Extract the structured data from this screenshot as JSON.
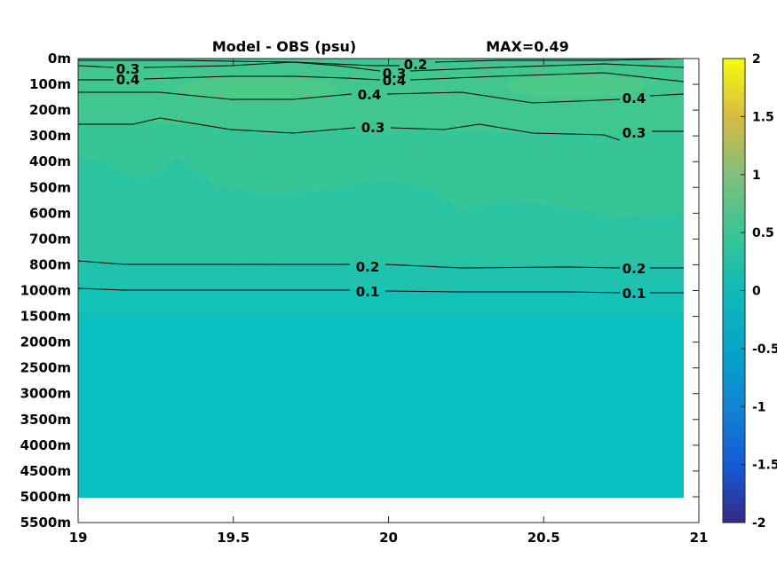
{
  "chart_data": {
    "type": "heatmap",
    "title": "Model - OBS (psu)",
    "max_label": "MAX=0.49",
    "xlabel": "",
    "ylabel": "",
    "x_ticks": [
      "19",
      "19.5",
      "20",
      "20.5",
      "21"
    ],
    "y_ticks": [
      "0m",
      "100m",
      "200m",
      "300m",
      "400m",
      "500m",
      "600m",
      "700m",
      "800m",
      "1000m",
      "1500m",
      "2000m",
      "2500m",
      "3000m",
      "3500m",
      "4000m",
      "4500m",
      "5000m",
      "5500m"
    ],
    "xlim": [
      19,
      21
    ],
    "data_xlim": [
      19,
      20.95
    ],
    "data_depth_max": "5000m",
    "colorbar": {
      "ticks": [
        "2",
        "1.5",
        "1",
        "0.5",
        "0",
        "-0.5",
        "-1",
        "-1.5",
        "-2"
      ],
      "range": [
        -2,
        2
      ],
      "colormap": "parula"
    },
    "contours": [
      {
        "level": 0.2,
        "labels": [
          "0.2"
        ]
      },
      {
        "level": 0.3,
        "labels": [
          "0.3",
          "0.3"
        ]
      },
      {
        "level": 0.4,
        "labels": [
          "0.4",
          "0.4"
        ]
      },
      {
        "level": 0.4,
        "labels": [
          "0.4",
          "0.4"
        ]
      },
      {
        "level": 0.3,
        "labels": [
          "0.3",
          "0.3"
        ]
      },
      {
        "level": 0.2,
        "labels": [
          "0.2",
          "0.2"
        ]
      },
      {
        "level": 0.1,
        "labels": [
          "0.1",
          "0.1"
        ]
      }
    ],
    "colors": {
      "near_zero": "#0abfbf",
      "value_0_1": "#17c0b2",
      "value_0_2": "#28c3a6",
      "value_0_3": "#35c596",
      "value_0_4": "#45c78a",
      "value_0_49": "#53c882"
    }
  }
}
